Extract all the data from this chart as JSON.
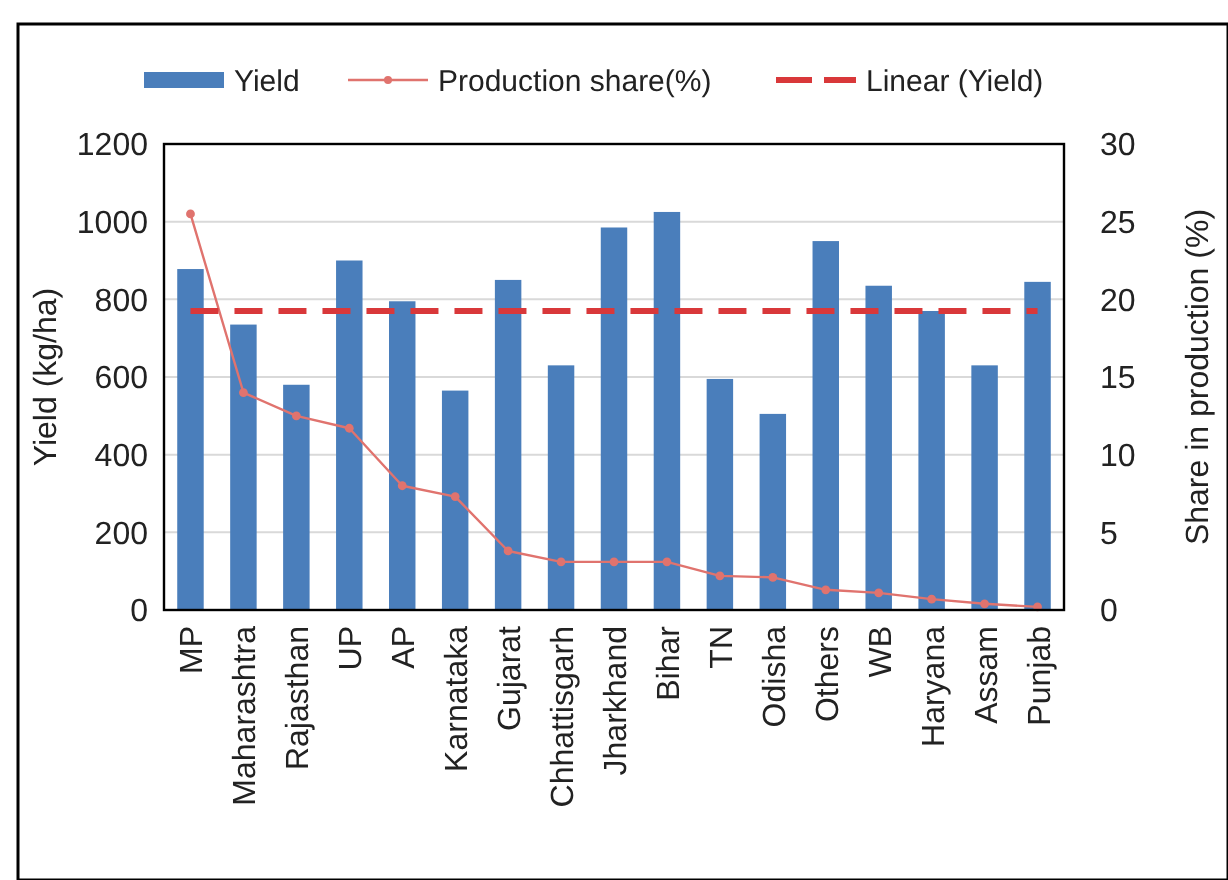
{
  "chart_data": {
    "type": "bar",
    "ylabel": "Yield (kg/ha)",
    "y2label": "Share in production (%)",
    "categories": [
      "MP",
      "Maharashtra",
      "Rajasthan",
      "UP",
      "AP",
      "Karnataka",
      "Gujarat",
      "Chhattisgarh",
      "Jharkhand",
      "Bihar",
      "TN",
      "Odisha",
      "Others",
      "WB",
      "Haryana",
      "Assam",
      "Punjab"
    ],
    "series": [
      {
        "name": "Yield",
        "color": "#4a7ebb",
        "values": [
          878,
          735,
          580,
          900,
          795,
          565,
          850,
          630,
          985,
          1025,
          595,
          505,
          950,
          835,
          770,
          630,
          845
        ]
      },
      {
        "name": "Production share(%)",
        "type": "line",
        "axis": "y2",
        "color": "#e0736e",
        "marker": "circle",
        "line_style": "solid",
        "values": [
          25.5,
          14,
          12.5,
          11.7,
          8,
          7.3,
          3.8,
          3.1,
          3.1,
          3.1,
          2.2,
          2.1,
          1.3,
          1.1,
          0.7,
          0.4,
          0.2
        ]
      },
      {
        "name": "Linear (Yield)",
        "type": "line",
        "color": "#d9383a",
        "marker": "none",
        "line_style": "dashed",
        "values": [
          770,
          770,
          770,
          770,
          770,
          770,
          770,
          770,
          770,
          770,
          770,
          770,
          770,
          770,
          770,
          770,
          770
        ]
      }
    ],
    "ylim": [
      0,
      1200
    ],
    "yticks": [
      0,
      200,
      400,
      600,
      800,
      1000,
      1200
    ],
    "y2lim": [
      0,
      30
    ],
    "y2ticks": [
      0,
      5,
      10,
      15,
      20,
      25,
      30
    ],
    "grid": "y",
    "legend": "top"
  }
}
